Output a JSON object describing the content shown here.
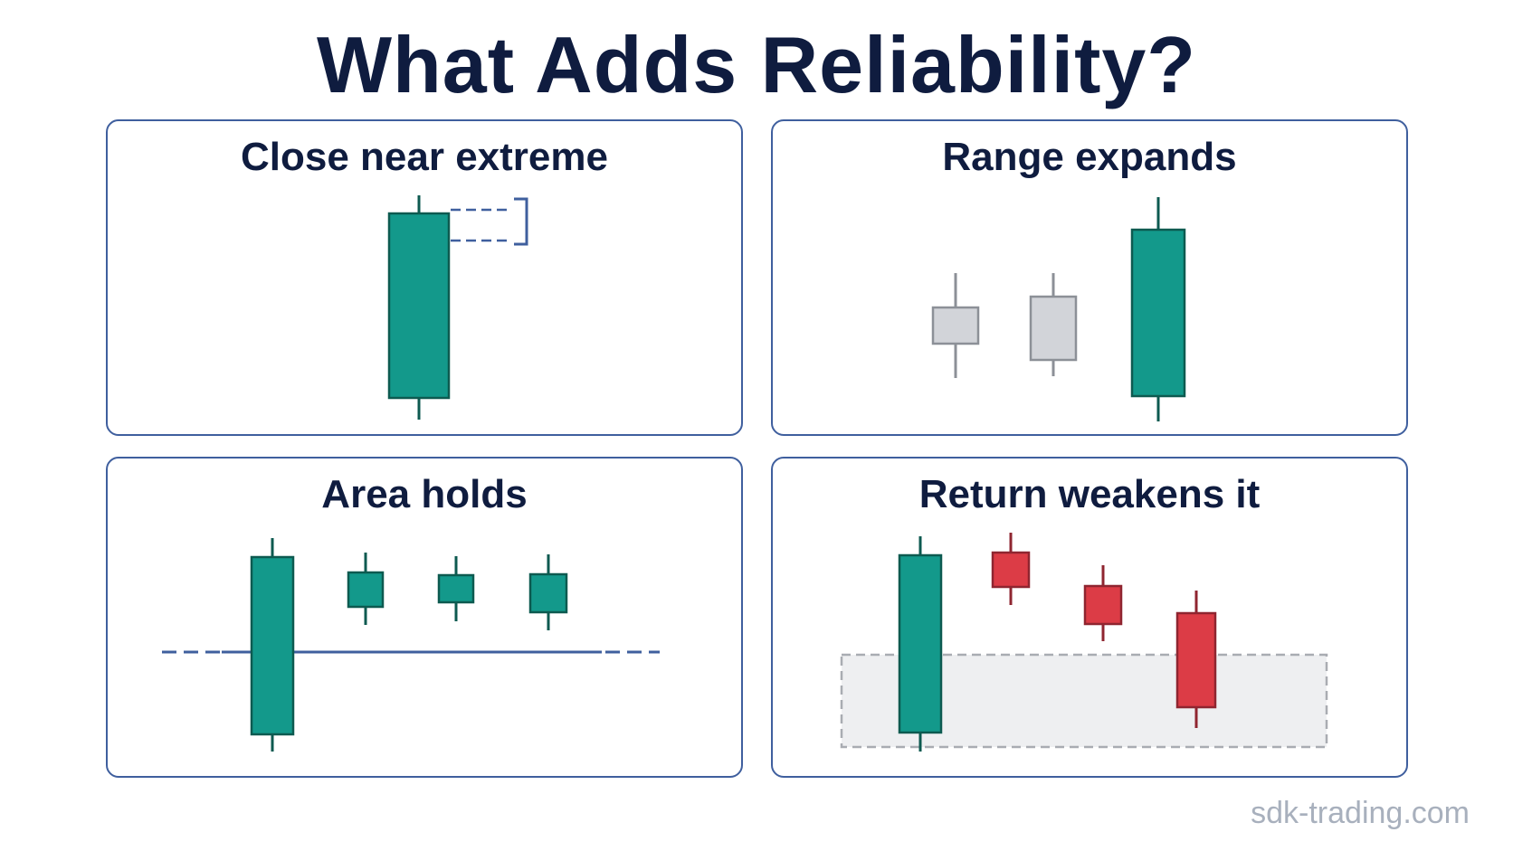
{
  "title": "What Adds Reliability?",
  "colors": {
    "bull": "#13998b",
    "bullDark": "#0d5a50",
    "bear": "#dc3c46",
    "bearDark": "#8f2530",
    "neutral": "#d2d4d9",
    "neutralDark": "#8c9097",
    "accent": "#3f5f9e",
    "zone": "#eeeff1",
    "zoneBorder": "#a9acb2"
  },
  "panels": [
    {
      "id": "close-near-extreme",
      "title": "Close near extreme"
    },
    {
      "id": "range-expands",
      "title": "Range expands"
    },
    {
      "id": "area-holds",
      "title": "Area holds"
    },
    {
      "id": "return-weakens",
      "title": "Return weakens it"
    }
  ],
  "footer": "sdk-trading.com"
}
